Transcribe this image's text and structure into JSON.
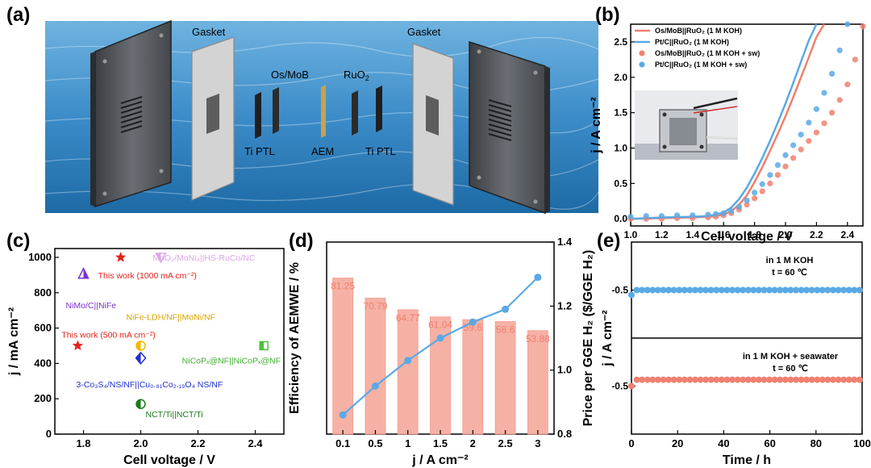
{
  "panel_a": {
    "label": "(a)",
    "labels": {
      "gasket_left": "Gasket",
      "gasket_right": "Gasket",
      "cathode": "Os/MoB",
      "anode": "RuO",
      "anode_sub": "2",
      "ti_ptl_left": "Ti PTL",
      "aem": "AEM",
      "ti_ptl_right": "Ti PTL"
    },
    "colors": {
      "sea_top": "#4f9bd3",
      "sea_bottom": "#1f6ea8",
      "plate": "#55595e",
      "gasket": "#c9c9c9",
      "aem": "#c8a24a"
    }
  },
  "chart_data": [
    {
      "panel": "(b)",
      "type": "line",
      "xlabel": "Cell voltage / V",
      "ylabel": "j / A cm⁻²",
      "xlim": [
        1.0,
        2.5
      ],
      "ylim": [
        -0.1,
        2.75
      ],
      "xticks": [
        1.0,
        1.2,
        1.4,
        1.6,
        1.8,
        2.0,
        2.2,
        2.4
      ],
      "yticks": [
        0.0,
        0.5,
        1.0,
        1.5,
        2.0,
        2.5
      ],
      "legend": [
        {
          "label": "Os/MoB||RuO₂ (1 M KOH)",
          "style": "line",
          "color": "#f08070"
        },
        {
          "label": "Pt/C||RuO₂ (1 M KOH)",
          "style": "line",
          "color": "#5aa9e6"
        },
        {
          "label": "Os/MoB||RuO₂ (1 M KOH + sw)",
          "style": "marker",
          "color": "#f08070"
        },
        {
          "label": "Pt/C||RuO₂ (1 M KOH + sw)",
          "style": "marker",
          "color": "#5aa9e6"
        }
      ],
      "series": [
        {
          "name": "Os/MoB||RuO2 (1 M KOH)",
          "style": "line",
          "color": "#f08070",
          "x": [
            1.0,
            1.2,
            1.4,
            1.5,
            1.55,
            1.6,
            1.65,
            1.7,
            1.75,
            1.8,
            1.85,
            1.9,
            1.95,
            2.0,
            2.05,
            2.1,
            2.15,
            2.2,
            2.25
          ],
          "y": [
            0.0,
            0.01,
            0.02,
            0.03,
            0.04,
            0.06,
            0.11,
            0.2,
            0.33,
            0.52,
            0.73,
            0.96,
            1.2,
            1.45,
            1.72,
            2.0,
            2.28,
            2.57,
            2.8
          ]
        },
        {
          "name": "Pt/C||RuO2 (1 M KOH)",
          "style": "line",
          "color": "#5aa9e6",
          "x": [
            1.0,
            1.2,
            1.4,
            1.5,
            1.55,
            1.6,
            1.65,
            1.7,
            1.75,
            1.8,
            1.85,
            1.9,
            1.95,
            2.0,
            2.05,
            2.1,
            2.15,
            2.2
          ],
          "y": [
            0.0,
            0.02,
            0.03,
            0.04,
            0.06,
            0.09,
            0.16,
            0.28,
            0.44,
            0.64,
            0.86,
            1.1,
            1.36,
            1.63,
            1.92,
            2.22,
            2.52,
            2.8
          ]
        },
        {
          "name": "Os/MoB||RuO2 (1 M KOH + sw)",
          "style": "marker",
          "color": "#f08070",
          "x": [
            1.0,
            1.1,
            1.2,
            1.3,
            1.4,
            1.5,
            1.55,
            1.6,
            1.65,
            1.7,
            1.75,
            1.8,
            1.85,
            1.9,
            1.95,
            2.0,
            2.05,
            2.1,
            2.15,
            2.2,
            2.25,
            2.3,
            2.35,
            2.4,
            2.45,
            2.5
          ],
          "y": [
            0.0,
            0.0,
            0.0,
            0.01,
            0.01,
            0.02,
            0.03,
            0.05,
            0.08,
            0.13,
            0.2,
            0.29,
            0.39,
            0.5,
            0.62,
            0.74,
            0.86,
            0.98,
            1.1,
            1.22,
            1.35,
            1.5,
            1.68,
            1.9,
            2.25,
            2.72
          ]
        },
        {
          "name": "Pt/C||RuO2 (1 M KOH + sw)",
          "style": "marker",
          "color": "#5aa9e6",
          "x": [
            1.0,
            1.1,
            1.2,
            1.3,
            1.4,
            1.5,
            1.55,
            1.6,
            1.65,
            1.7,
            1.75,
            1.8,
            1.85,
            1.9,
            1.95,
            2.0,
            2.05,
            2.1,
            2.15,
            2.2,
            2.25,
            2.3,
            2.35,
            2.4
          ],
          "y": [
            0.03,
            0.04,
            0.04,
            0.05,
            0.05,
            0.06,
            0.07,
            0.08,
            0.11,
            0.17,
            0.26,
            0.37,
            0.49,
            0.62,
            0.76,
            0.9,
            1.04,
            1.19,
            1.36,
            1.55,
            1.78,
            2.05,
            2.38,
            2.75
          ]
        }
      ]
    },
    {
      "panel": "(c)",
      "type": "scatter",
      "xlabel": "Cell voltage / V",
      "ylabel": "j / mA cm⁻²",
      "xlim": [
        1.7,
        2.5
      ],
      "ylim": [
        0,
        1050
      ],
      "xticks": [
        1.8,
        2.0,
        2.2,
        2.4
      ],
      "yticks": [
        0,
        200,
        400,
        600,
        800,
        1000
      ],
      "points": [
        {
          "x": 1.93,
          "y": 1000,
          "marker": "star",
          "color": "#e3231b",
          "label": "This work (1000 mA cm⁻²)",
          "label_color": "#e3231b"
        },
        {
          "x": 2.07,
          "y": 1000,
          "marker": "triangle",
          "color": "#dca6e8",
          "label": "MoO₂/MoNi₄||HS-RuCo/NC",
          "label_color": "#dca6e8"
        },
        {
          "x": 1.8,
          "y": 905,
          "marker": "triangle-half",
          "color": "#7b2fd1",
          "label": "NiMo/C||NiFe",
          "label_color": "#7b2fd1"
        },
        {
          "x": 2.0,
          "y": 500,
          "marker": "circle-half",
          "color": "#f0b800",
          "label": "NiFe-LDH/NF||MoNi/NF",
          "label_color": "#d9a400"
        },
        {
          "x": 1.78,
          "y": 500,
          "marker": "star",
          "color": "#e3231b",
          "label": "This work (500 mA cm⁻²)",
          "label_color": "#e3231b"
        },
        {
          "x": 2.43,
          "y": 500,
          "marker": "square-half",
          "color": "#4cc13a",
          "label": "NiCoPₓ@NF||NiCoPₓ@NF",
          "label_color": "#3fae2f"
        },
        {
          "x": 2.0,
          "y": 430,
          "marker": "diamond-half",
          "color": "#1f2fd1",
          "label": "3-Co₃S₄/NS/NF||Cu₀.₈₁Co₂.₁₉O₄ NS/NF",
          "label_color": "#1f2fd1"
        },
        {
          "x": 2.0,
          "y": 170,
          "marker": "circle-half",
          "color": "#1a7a1a",
          "label": "NCT/Ti||NCT/Ti",
          "label_color": "#1a7a1a"
        }
      ]
    },
    {
      "panel": "(d)",
      "type": "bar",
      "xlabel": "j / A cm⁻²",
      "ylabel": "Efficiency of AEMWE / %",
      "y2label": "Price per GGE H₂ ($/GGE H₂)",
      "categories": [
        "0.1",
        "0.5",
        "1",
        "1.5",
        "2",
        "2.5",
        "3"
      ],
      "values": [
        81.25,
        70.79,
        64.77,
        61.04,
        59.6,
        58.6,
        53.88
      ],
      "bar_labels": [
        "81.25",
        "70.79",
        "64.77",
        "61.04",
        "59.6",
        "58.6",
        "53.88"
      ],
      "ylim": [
        0,
        100
      ],
      "line_series": {
        "name": "Price per GGE H2",
        "values": [
          0.86,
          0.95,
          1.03,
          1.1,
          1.15,
          1.19,
          1.29
        ],
        "color": "#5aa9e6"
      },
      "y2lim": [
        0.8,
        1.4
      ],
      "y2ticks": [
        0.8,
        1.0,
        1.2,
        1.4
      ],
      "bar_color": "#f6b1a5"
    },
    {
      "panel": "(e)",
      "type": "line",
      "xlabel": "Time / h",
      "ylabel": "j / A cm⁻²",
      "xlim": [
        0,
        100
      ],
      "xticks": [
        0,
        20,
        40,
        60,
        80,
        100
      ],
      "subplots": [
        {
          "annotation": [
            "in 1 M KOH",
            "t = 60 ℃"
          ],
          "ylim": [
            -0.8,
            -0.2
          ],
          "yticks": [
            -0.5
          ],
          "color": "#5aa9e6",
          "x": [
            0,
            1,
            3,
            6,
            10,
            15,
            20,
            25,
            30,
            35,
            40,
            45,
            50,
            55,
            60,
            65,
            70,
            75,
            80,
            85,
            90,
            95,
            99
          ],
          "y": [
            -0.53,
            -0.5,
            -0.5,
            -0.5,
            -0.5,
            -0.5,
            -0.5,
            -0.5,
            -0.5,
            -0.5,
            -0.5,
            -0.5,
            -0.5,
            -0.5,
            -0.5,
            -0.5,
            -0.5,
            -0.5,
            -0.5,
            -0.5,
            -0.5,
            -0.5,
            -0.5
          ]
        },
        {
          "annotation": [
            "in 1 M KOH + seawater",
            "t = 60 ℃"
          ],
          "ylim": [
            -0.8,
            -0.2
          ],
          "yticks": [
            -0.5
          ],
          "color": "#f08070",
          "x": [
            0,
            1,
            3,
            6,
            10,
            15,
            20,
            25,
            30,
            35,
            40,
            45,
            50,
            55,
            60,
            65,
            70,
            75,
            80,
            85,
            90,
            95,
            99
          ],
          "y": [
            -0.5,
            -0.46,
            -0.46,
            -0.46,
            -0.46,
            -0.46,
            -0.46,
            -0.46,
            -0.46,
            -0.46,
            -0.46,
            -0.46,
            -0.46,
            -0.46,
            -0.46,
            -0.46,
            -0.46,
            -0.46,
            -0.46,
            -0.46,
            -0.46,
            -0.46,
            -0.46
          ]
        }
      ]
    }
  ]
}
